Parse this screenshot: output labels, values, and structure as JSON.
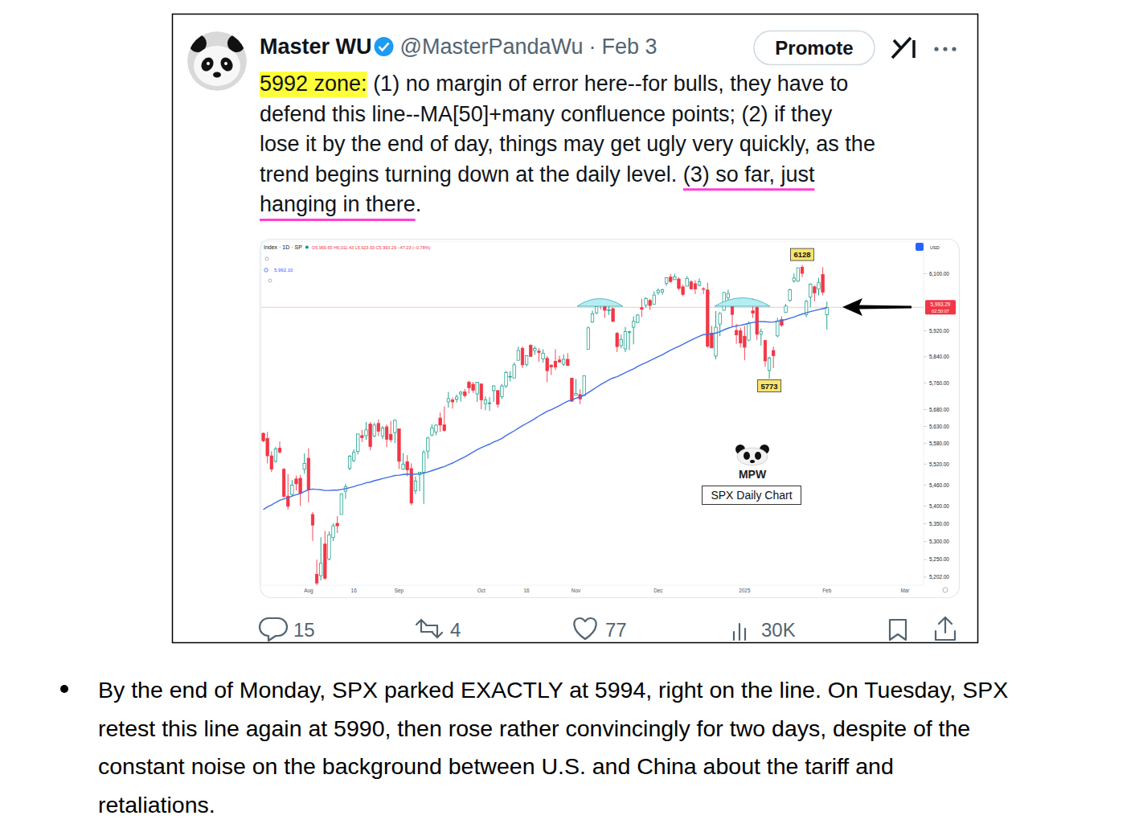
{
  "tweet": {
    "name": "Master WU",
    "handle": "@MasterPandaWu",
    "separator": "·",
    "date": "Feb 3",
    "button": "Promote",
    "lines": [
      [
        {
          "text": "5992 zone:",
          "mark": "highlight"
        },
        {
          "text": " (1) no margin of error here--for bulls, they have to"
        }
      ],
      [
        {
          "text": "defend this line--MA[50]+many confluence points; (2) if they"
        }
      ],
      [
        {
          "text": "lose it by the end of day, things may get ugly very quickly, as the"
        }
      ],
      [
        {
          "text": "trend begins turning down at the daily level. "
        },
        {
          "text": "(3) so far, just",
          "mark": "underline"
        }
      ],
      [
        {
          "text": "hanging in there",
          "mark": "underline"
        },
        {
          "text": "."
        }
      ]
    ],
    "stats": {
      "replies": 15,
      "reposts": 4,
      "likes": 77,
      "views": "30K"
    }
  },
  "chart_data": {
    "type": "candlestick",
    "log": "y",
    "grid": false,
    "header": "O5,969.65 H6,011.43 L5,923.93 C5,993.29 −47.23 (−0.78%)",
    "indicator_value": "5,992.10",
    "currency": "USD",
    "categories": [
      null,
      null,
      null,
      null,
      null,
      null,
      null,
      null,
      null,
      null,
      null,
      "Aug",
      null,
      null,
      null,
      null,
      null,
      null,
      null,
      null,
      null,
      null,
      "16",
      null,
      null,
      null,
      null,
      null,
      null,
      null,
      null,
      null,
      null,
      "Sep",
      null,
      null,
      null,
      null,
      null,
      null,
      null,
      null,
      null,
      null,
      null,
      null,
      null,
      null,
      null,
      null,
      null,
      null,
      null,
      "Oct",
      null,
      null,
      null,
      null,
      null,
      null,
      null,
      null,
      null,
      null,
      "16",
      null,
      null,
      null,
      null,
      null,
      null,
      null,
      null,
      null,
      null,
      null,
      "Nov",
      null,
      null,
      null,
      null,
      null,
      null,
      null,
      null,
      null,
      null,
      null,
      null,
      null,
      null,
      null,
      null,
      null,
      null,
      null,
      "Dec",
      null,
      null,
      null,
      null,
      null,
      null,
      null,
      null,
      null,
      null,
      null,
      null,
      null,
      null,
      null,
      null,
      null,
      null,
      null,
      null,
      "2025",
      null,
      null,
      null,
      null,
      null,
      null,
      null,
      null,
      null,
      null,
      null,
      null,
      null,
      null,
      null,
      null,
      null,
      null,
      null,
      "Feb",
      null,
      null,
      null,
      null,
      null,
      null,
      null,
      null,
      null,
      null,
      null,
      null,
      null,
      null,
      null,
      null,
      null,
      null,
      "Mar",
      null,
      null,
      null,
      null
    ],
    "series": [
      {
        "name": "Index · 1D · SP",
        "type": "candlestick",
        "open": [
          5610,
          5595,
          5544,
          5528,
          5566,
          5505,
          5428,
          5433,
          5477,
          5479,
          5505,
          5537,
          5376,
          5210,
          5206,
          5293,
          5252,
          5311,
          5351,
          5376,
          5442,
          5508,
          5530,
          5557,
          5603,
          5603,
          5637,
          5602,
          5639,
          5602,
          5629,
          5607,
          5612,
          5623,
          5506,
          5527,
          5507,
          5443,
          5490,
          5496,
          5558,
          5605,
          5614,
          5655,
          5635,
          5703,
          5709,
          5711,
          5727,
          5733,
          5762,
          5756,
          5727,
          5757,
          5698,
          5698,
          5737,
          5737,
          5719,
          5751,
          5778,
          5775,
          5829,
          5866,
          5816,
          5875,
          5859,
          5857,
          5833,
          5835,
          5814,
          5826,
          5830,
          5817,
          5832,
          5775,
          5723,
          5725,
          5722,
          5863,
          5947,
          5976,
          6009,
          6003,
          5985,
          5989,
          5912,
          5874,
          5864,
          5917,
          5931,
          5946,
          5992,
          6000,
          6015,
          6003,
          6040,
          6042,
          6069,
          6089,
          6081,
          6083,
          6058,
          6060,
          6074,
          6068,
          6063,
          6052,
          6048,
          5913,
          5842,
          5941,
          5984,
          6024,
          6006,
          5921,
          5920,
          5903,
          5891,
          5982,
          5993,
          5910,
          5890,
          5798,
          5859,
          5904,
          5955,
          5977,
          6015,
          6077,
          6076,
          6121,
          5970,
          6026,
          6058,
          6051,
          6097,
          5969.65,
          null,
          null,
          null,
          null,
          null,
          null,
          null,
          null,
          null,
          null,
          null,
          null,
          null,
          null,
          null,
          null,
          null,
          null,
          null,
          null,
          null,
          null,
          null
        ],
        "high": [
          5612,
          5614,
          5557,
          5570,
          5586,
          5508,
          5491,
          5474,
          5487,
          5489,
          5551,
          5566,
          5383,
          5250,
          5312,
          5330,
          5328,
          5351,
          5371,
          5436,
          5463,
          5546,
          5563,
          5608,
          5620,
          5643,
          5643,
          5641,
          5651,
          5631,
          5636,
          5646,
          5651,
          5623,
          5552,
          5546,
          5522,
          5484,
          5497,
          5560,
          5600,
          5636,
          5636,
          5671,
          5690,
          5733,
          5716,
          5725,
          5736,
          5742,
          5767,
          5763,
          5763,
          5757,
          5720,
          5718,
          5753,
          5739,
          5757,
          5796,
          5796,
          5822,
          5871,
          5871,
          5843,
          5878,
          5872,
          5866,
          5863,
          5842,
          5817,
          5863,
          5843,
          5847,
          5851,
          5775,
          5772,
          5741,
          5783,
          5933,
          5983,
          6012,
          6017,
          6009,
          6009,
          5993,
          5916,
          5908,
          5932,
          5920,
          5965,
          5972,
          6020,
          6025,
          6020,
          6044,
          6053,
          6052,
          6089,
          6099,
          6100,
          6088,
          6065,
          6092,
          6079,
          6079,
          6085,
          6057,
          6071,
          5935,
          5982,
          5978,
          6041,
          6049,
          6006,
          5941,
          5930,
          5935,
          5949,
          6021,
          6000,
          5927,
          5890,
          5840,
          5871,
          5960,
          5965,
          6004,
          6052,
          6100,
          6119,
          6128,
          6017,
          6069,
          6063,
          6087,
          6121,
          6011.43,
          null,
          null,
          null,
          null,
          null,
          null,
          null,
          null,
          null,
          null,
          null,
          null,
          null,
          null,
          null,
          null,
          null,
          null,
          null,
          null,
          null,
          null,
          null
        ],
        "low": [
          5584,
          5522,
          5497,
          5524,
          5550,
          5424,
          5390,
          5429,
          5444,
          5401,
          5492,
          5410,
          5302,
          5175,
          5193,
          5195,
          5248,
          5302,
          5324,
          5376,
          5420,
          5502,
          5526,
          5548,
          5584,
          5591,
          5560,
          5598,
          5602,
          5593,
          5569,
          5583,
          5581,
          5506,
          5503,
          5485,
          5402,
          5434,
          5442,
          5406,
          5536,
          5601,
          5604,
          5614,
          5615,
          5686,
          5683,
          5701,
          5704,
          5716,
          5728,
          5730,
          5703,
          5681,
          5678,
          5676,
          5703,
          5686,
          5712,
          5745,
          5765,
          5775,
          5829,
          5805,
          5810,
          5840,
          5846,
          5824,
          5822,
          5762,
          5784,
          5799,
          5822,
          5811,
          5811,
          5703,
          5723,
          5696,
          5722,
          5863,
          5945,
          5971,
          5986,
          5960,
          5969,
          5947,
          5854,
          5866,
          5854,
          5860,
          5878,
          5944,
          5963,
          5992,
          5985,
          6003,
          6033,
          6033,
          6061,
          6071,
          6079,
          6047,
          6028,
          6060,
          6051,
          6035,
          6059,
          6035,
          5867,
          5866,
          5832,
          5903,
          5983,
          6007,
          5932,
          5880,
          5868,
          5829,
          5888,
          5960,
          5891,
          5874,
          5809,
          5773,
          5805,
          5900,
          5932,
          5976,
          6011,
          6071,
          6074,
          6089,
          5962,
          5994,
          6012,
          6031,
          6031,
          5923.93,
          null,
          null,
          null,
          null,
          null,
          null,
          null,
          null,
          null,
          null,
          null,
          null,
          null,
          null,
          null,
          null,
          null,
          null,
          null,
          null,
          null,
          null,
          null
        ],
        "close": [
          5588,
          5544,
          5505,
          5564,
          5555,
          5427,
          5399,
          5459,
          5463,
          5436,
          5522,
          5446,
          5346,
          5186,
          5240,
          5199,
          5319,
          5344,
          5344,
          5434,
          5455,
          5543,
          5554,
          5608,
          5597,
          5620,
          5571,
          5634,
          5616,
          5625,
          5592,
          5591,
          5648,
          5528,
          5520,
          5503,
          5408,
          5471,
          5496,
          5554,
          5596,
          5626,
          5634,
          5634,
          5618,
          5713,
          5703,
          5718,
          5732,
          5722,
          5745,
          5738,
          5762,
          5709,
          5709,
          5700,
          5751,
          5696,
          5751,
          5792,
          5780,
          5815,
          5859,
          5815,
          5843,
          5841,
          5865,
          5853,
          5851,
          5797,
          5809,
          5808,
          5823,
          5832,
          5813,
          5705,
          5728,
          5712,
          5782,
          5929,
          5973,
          5996,
          6001,
          5984,
          5985,
          5949,
          5871,
          5893,
          5917,
          5917,
          5949,
          5969,
          5987,
          6021,
          5999,
          6032,
          6047,
          6049,
          6087,
          6075,
          6090,
          6053,
          6034,
          6085,
          6051,
          6051,
          6074,
          6050,
          5872,
          5867,
          5931,
          5974,
          6040,
          6037,
          5971,
          5907,
          5882,
          5869,
          5942,
          5975,
          5909,
          5918,
          5827,
          5836,
          5843,
          5950,
          5937,
          5997,
          6049,
          6086,
          6119,
          6101,
          6012,
          6067,
          6039,
          6071,
          6041,
          5993.29,
          null,
          null,
          null,
          null,
          null,
          null,
          null,
          null,
          null,
          null,
          null,
          null,
          null,
          null,
          null,
          null,
          null,
          null,
          null,
          null,
          null,
          null,
          null
        ]
      },
      {
        "type": "line",
        "color": "#3f6ee8",
        "values": [
          5390,
          5397,
          5403,
          5410,
          5416,
          5420,
          5423,
          5428,
          5432,
          5435,
          5441,
          5446,
          5448,
          5447,
          5446,
          5444,
          5444,
          5445,
          5445,
          5447,
          5449,
          5452,
          5455,
          5459,
          5462,
          5466,
          5468,
          5472,
          5475,
          5478,
          5481,
          5484,
          5487,
          5488,
          5490,
          5491,
          5490,
          5491,
          5492,
          5494,
          5497,
          5501,
          5505,
          5509,
          5513,
          5518,
          5523,
          5529,
          5535,
          5541,
          5548,
          5555,
          5562,
          5568,
          5573,
          5578,
          5584,
          5589,
          5595,
          5603,
          5610,
          5617,
          5625,
          5632,
          5639,
          5646,
          5653,
          5661,
          5668,
          5675,
          5680,
          5686,
          5692,
          5699,
          5705,
          5709,
          5714,
          5718,
          5723,
          5731,
          5739,
          5747,
          5755,
          5762,
          5769,
          5775,
          5779,
          5785,
          5791,
          5797,
          5803,
          5810,
          5816,
          5822,
          5828,
          5834,
          5840,
          5846,
          5853,
          5860,
          5866,
          5872,
          5878,
          5885,
          5891,
          5897,
          5903,
          5908,
          5909,
          5910,
          5913,
          5917,
          5923,
          5928,
          5932,
          5935,
          5937,
          5940,
          5943,
          5946,
          5948,
          5949,
          5948,
          5947,
          5947,
          5950,
          5952,
          5955,
          5959,
          5963,
          5968,
          5972,
          5976,
          5980,
          5983,
          5986,
          5989,
          5992.1,
          null,
          null,
          null,
          null,
          null,
          null,
          null,
          null,
          null,
          null,
          null,
          null,
          null,
          null,
          null,
          null,
          null,
          null,
          null,
          null,
          null,
          null,
          null
        ]
      }
    ],
    "ylim": [
      5180,
      6205
    ],
    "yticks": [
      {
        "value": 6100,
        "label": "6,100.00"
      },
      {
        "value": 5920,
        "label": "5,920.00"
      },
      {
        "value": 5840,
        "label": "5,840.00"
      },
      {
        "value": 5760,
        "label": "5,760.00"
      },
      {
        "value": 5680,
        "label": "5,680.00"
      },
      {
        "value": 5630,
        "label": "5,630.00"
      },
      {
        "value": 5580,
        "label": "5,580.00"
      },
      {
        "value": 5520,
        "label": "5,520.00"
      },
      {
        "value": 5460,
        "label": "5,460.00"
      },
      {
        "value": 5400,
        "label": "5,400.00"
      },
      {
        "value": 5350,
        "label": "5,350.00"
      },
      {
        "value": 5300,
        "label": "5,300.00"
      },
      {
        "value": 5250,
        "label": "5,250.00"
      },
      {
        "value": 5202,
        "label": "5,202.00"
      }
    ],
    "last_price": {
      "value": 5993.29,
      "label": "5,993.29",
      "timer": "02:50:07"
    },
    "annotations": [
      {
        "label": "6128",
        "index": 131,
        "value": 6128,
        "position": "above"
      },
      {
        "label": "5773",
        "index": 123,
        "value": 5773,
        "position": "below"
      }
    ],
    "watermark": {
      "logo": "MPW",
      "caption": "SPX Daily Chart"
    }
  },
  "bullet": [
    "By the end of Monday, SPX parked EXACTLY at 5994, right on the line. On Tuesday, SPX",
    "retest this line again at 5990, then rose rather convincingly for two days, despite of the",
    "constant noise on the background between U.S. and China about the tariff and",
    "retaliations."
  ]
}
